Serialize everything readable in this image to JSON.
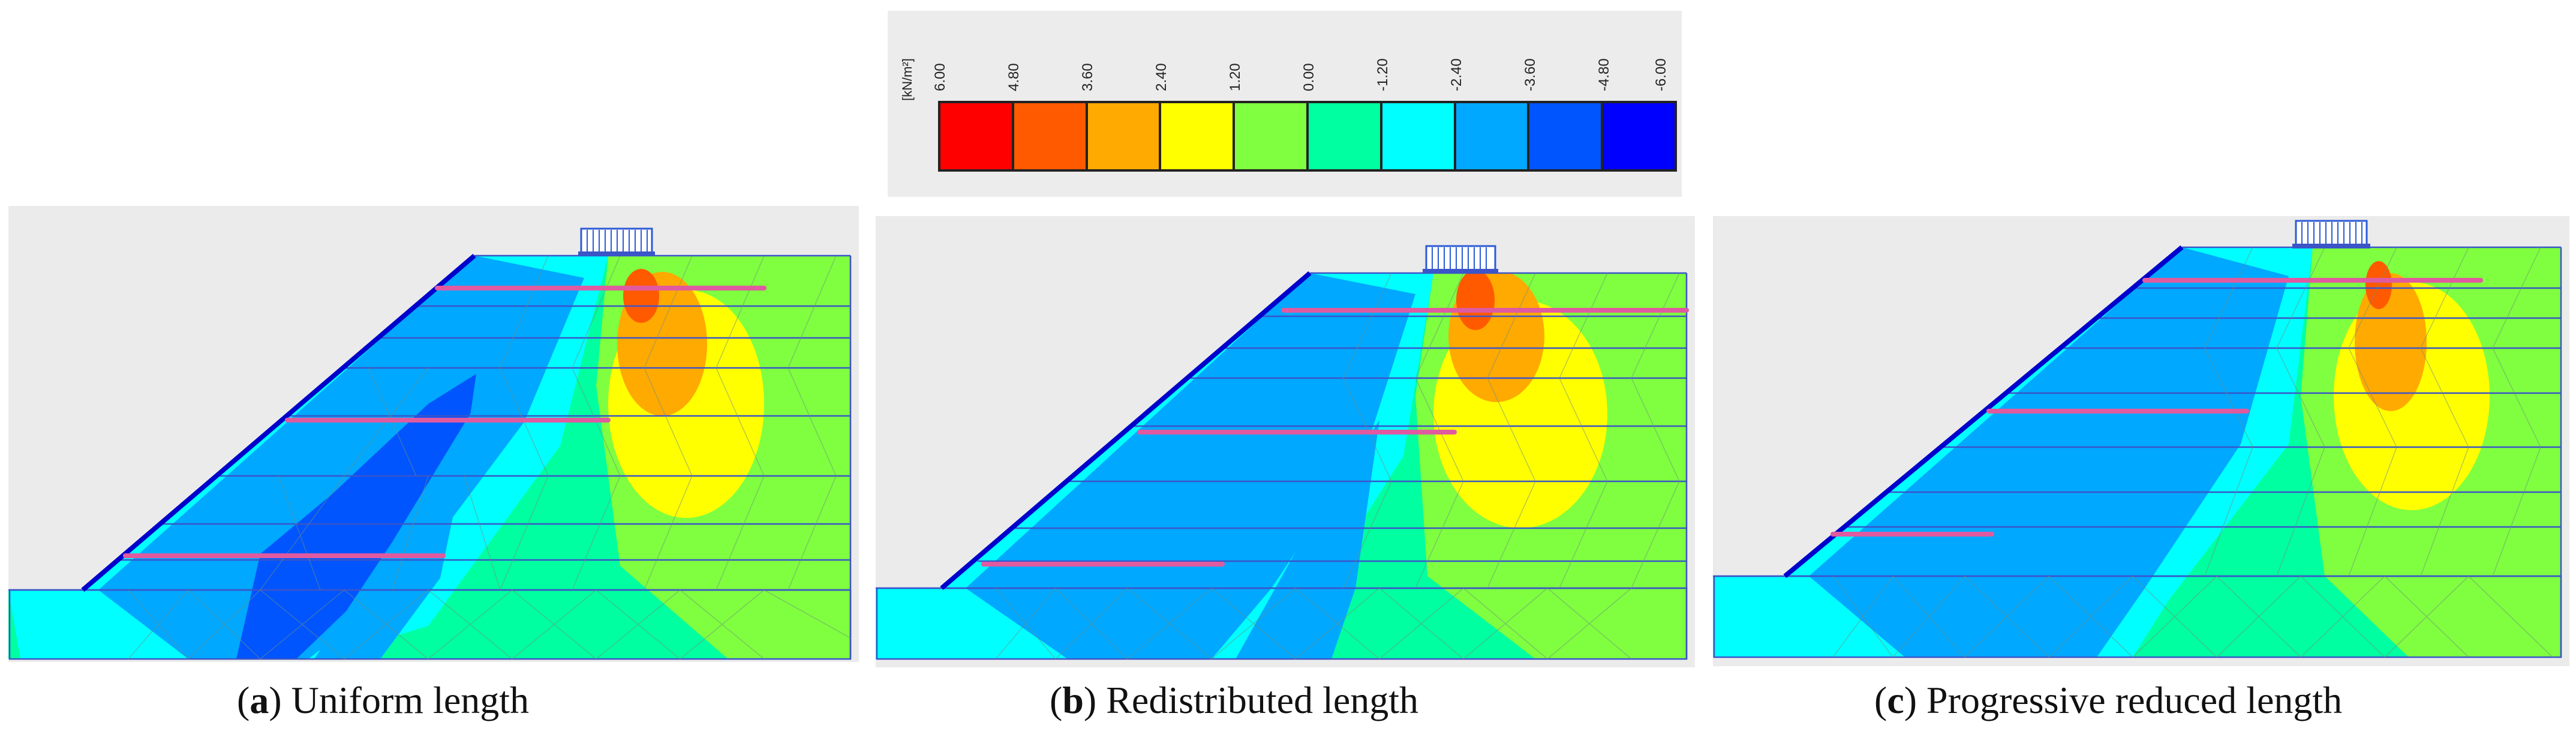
{
  "legend": {
    "unit": "[kN/m²]",
    "ticks": [
      "6.00",
      "4.80",
      "3.60",
      "2.40",
      "1.20",
      "0.00",
      "-1.20",
      "-2.40",
      "-3.60",
      "-4.80",
      "-6.00"
    ],
    "colors": [
      "#ff0000",
      "#ff5a00",
      "#ffaa00",
      "#ffff00",
      "#7fff3f",
      "#00ffa0",
      "#00ffff",
      "#00a8ff",
      "#0055ff",
      "#0000ff"
    ]
  },
  "panels": [
    {
      "id": "a",
      "letter": "a",
      "title": "Uniform length",
      "nail_lengths": [
        "long",
        "long",
        "long"
      ]
    },
    {
      "id": "b",
      "letter": "b",
      "title": "Redistributed length",
      "nail_lengths": [
        "long",
        "medium",
        "short"
      ]
    },
    {
      "id": "c",
      "letter": "c",
      "title": "Progressive reduced length",
      "nail_lengths": [
        "long",
        "medium",
        "short"
      ]
    }
  ]
}
